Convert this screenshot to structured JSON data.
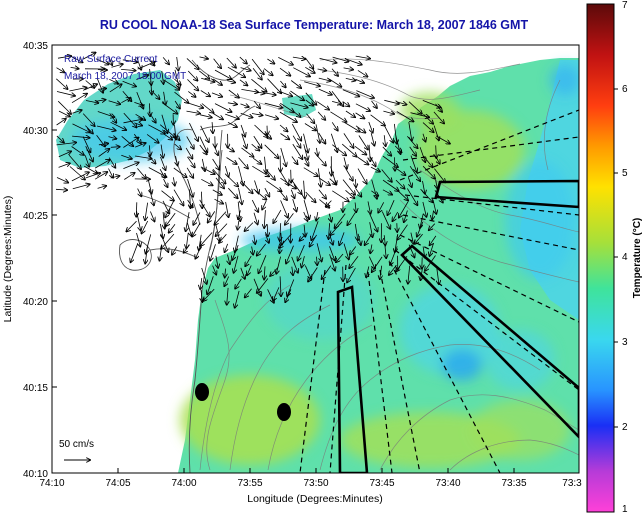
{
  "title": "RU COOL  NOAA-18  Sea Surface Temperature:  March 18, 2007 1846 GMT",
  "overlay": {
    "line1": "Raw Surface Current",
    "line2": "March 18, 2007 18:00 GMT"
  },
  "axes": {
    "ylabel": "Latitude (Degrees:Minutes)",
    "xlabel": "Longitude (Degrees:Minutes)",
    "yticks": [
      "40:35",
      "40:30",
      "40:25",
      "40:20",
      "40:15",
      "40:10"
    ],
    "xticks": [
      "74:10",
      "74:05",
      "74:00",
      "73:55",
      "73:50",
      "73:45",
      "73:40",
      "73:35",
      "73:3"
    ]
  },
  "scale_vector": {
    "label": "50 cm/s"
  },
  "colorbar": {
    "label": "Temperature (°C)",
    "ticks": [
      "7",
      "6",
      "5",
      "4",
      "3",
      "2",
      "1"
    ],
    "stops": [
      "#5c0a0a",
      "#c01212",
      "#ff3e10",
      "#ff9a00",
      "#ffe100",
      "#a6e03a",
      "#3fe39b",
      "#3ad8ee",
      "#2894ff",
      "#1a2ff5",
      "#b63bd8",
      "#ff40d8"
    ]
  },
  "colors": {
    "title": "#1414a8",
    "overlay_text": "#1a1aa0",
    "land": "#ffffff",
    "sea_base": "#5fe0ab",
    "warm_patch": "#9fe05c",
    "cool_patch": "#4fd6e0",
    "cold_patch": "#2ba8ee"
  }
}
